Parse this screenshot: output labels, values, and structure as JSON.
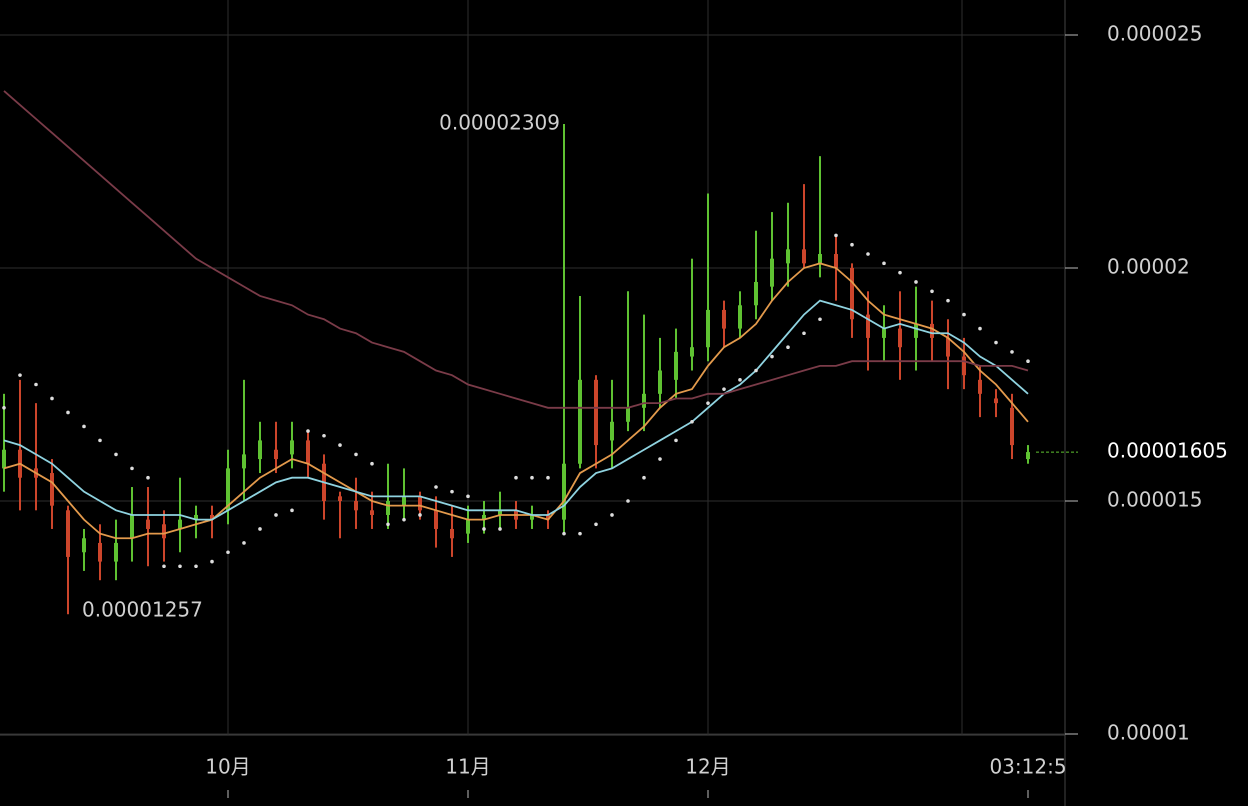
{
  "chart_data": {
    "type": "candlestick",
    "categories": [
      null,
      null,
      null,
      null,
      null,
      null,
      null,
      null,
      null,
      null,
      null,
      null,
      null,
      null,
      "10月",
      null,
      null,
      null,
      null,
      null,
      null,
      null,
      null,
      null,
      null,
      null,
      null,
      null,
      null,
      "11月",
      null,
      null,
      null,
      null,
      null,
      null,
      null,
      null,
      null,
      null,
      null,
      null,
      null,
      null,
      "12月",
      null,
      null,
      null,
      null,
      null,
      null,
      null,
      null,
      null,
      null,
      null,
      null,
      null,
      null,
      null,
      null,
      null,
      null,
      null,
      "03:12:5"
    ],
    "open": [
      1.57e-05,
      1.61e-05,
      1.57e-05,
      1.56e-05,
      1.48e-05,
      1.39e-05,
      1.41e-05,
      1.37e-05,
      1.42e-05,
      1.46e-05,
      1.45e-05,
      1.44e-05,
      1.46e-05,
      1.47e-05,
      1.48e-05,
      1.57e-05,
      1.59e-05,
      1.61e-05,
      1.6e-05,
      1.63e-05,
      1.58e-05,
      1.51e-05,
      1.5e-05,
      1.48e-05,
      1.47e-05,
      1.49e-05,
      1.51e-05,
      1.48e-05,
      1.44e-05,
      1.43e-05,
      1.46e-05,
      1.47e-05,
      1.48e-05,
      1.46e-05,
      1.47e-05,
      1.46e-05,
      1.58e-05,
      1.76e-05,
      1.63e-05,
      1.67e-05,
      1.7e-05,
      1.73e-05,
      1.76e-05,
      1.81e-05,
      1.83e-05,
      1.91e-05,
      1.87e-05,
      1.92e-05,
      1.96e-05,
      2.01e-05,
      2.04e-05,
      2.01e-05,
      2.03e-05,
      2e-05,
      1.9e-05,
      1.85e-05,
      1.87e-05,
      1.85e-05,
      1.88e-05,
      1.85e-05,
      1.81e-05,
      1.76e-05,
      1.72e-05,
      1.7e-05,
      1.59e-05
    ],
    "high": [
      1.73e-05,
      1.76e-05,
      1.71e-05,
      1.59e-05,
      1.49e-05,
      1.44e-05,
      1.45e-05,
      1.46e-05,
      1.53e-05,
      1.53e-05,
      1.48e-05,
      1.55e-05,
      1.49e-05,
      1.49e-05,
      1.61e-05,
      1.76e-05,
      1.67e-05,
      1.67e-05,
      1.67e-05,
      1.65e-05,
      1.6e-05,
      1.52e-05,
      1.55e-05,
      1.52e-05,
      1.58e-05,
      1.57e-05,
      1.52e-05,
      1.51e-05,
      1.49e-05,
      1.49e-05,
      1.5e-05,
      1.52e-05,
      1.5e-05,
      1.49e-05,
      1.48e-05,
      2.309e-05,
      1.94e-05,
      1.77e-05,
      1.76e-05,
      1.95e-05,
      1.9e-05,
      1.85e-05,
      1.87e-05,
      2.02e-05,
      2.16e-05,
      1.93e-05,
      1.95e-05,
      2.08e-05,
      2.12e-05,
      2.14e-05,
      2.18e-05,
      2.24e-05,
      2.07e-05,
      2.01e-05,
      1.95e-05,
      1.92e-05,
      1.95e-05,
      1.96e-05,
      1.93e-05,
      1.89e-05,
      1.85e-05,
      1.79e-05,
      1.74e-05,
      1.73e-05,
      1.62e-05
    ],
    "low": [
      1.52e-05,
      1.48e-05,
      1.48e-05,
      1.44e-05,
      1.257e-05,
      1.35e-05,
      1.33e-05,
      1.33e-05,
      1.37e-05,
      1.36e-05,
      1.37e-05,
      1.39e-05,
      1.42e-05,
      1.42e-05,
      1.45e-05,
      1.5e-05,
      1.56e-05,
      1.56e-05,
      1.57e-05,
      1.55e-05,
      1.46e-05,
      1.42e-05,
      1.44e-05,
      1.44e-05,
      1.44e-05,
      1.46e-05,
      1.46e-05,
      1.4e-05,
      1.38e-05,
      1.41e-05,
      1.43e-05,
      1.44e-05,
      1.44e-05,
      1.44e-05,
      1.44e-05,
      1.43e-05,
      1.57e-05,
      1.57e-05,
      1.57e-05,
      1.65e-05,
      1.65e-05,
      1.7e-05,
      1.72e-05,
      1.78e-05,
      1.8e-05,
      1.83e-05,
      1.85e-05,
      1.89e-05,
      1.93e-05,
      1.96e-05,
      2e-05,
      1.98e-05,
      1.93e-05,
      1.85e-05,
      1.78e-05,
      1.8e-05,
      1.76e-05,
      1.78e-05,
      1.8e-05,
      1.74e-05,
      1.74e-05,
      1.68e-05,
      1.68e-05,
      1.59e-05,
      1.58e-05
    ],
    "close": [
      1.61e-05,
      1.55e-05,
      1.55e-05,
      1.49e-05,
      1.38e-05,
      1.42e-05,
      1.37e-05,
      1.41e-05,
      1.47e-05,
      1.44e-05,
      1.42e-05,
      1.46e-05,
      1.47e-05,
      1.46e-05,
      1.57e-05,
      1.6e-05,
      1.63e-05,
      1.59e-05,
      1.63e-05,
      1.58e-05,
      1.5e-05,
      1.5e-05,
      1.48e-05,
      1.47e-05,
      1.5e-05,
      1.51e-05,
      1.48e-05,
      1.44e-05,
      1.42e-05,
      1.46e-05,
      1.47e-05,
      1.48e-05,
      1.46e-05,
      1.47e-05,
      1.46e-05,
      1.58e-05,
      1.76e-05,
      1.62e-05,
      1.67e-05,
      1.7e-05,
      1.73e-05,
      1.78e-05,
      1.82e-05,
      1.83e-05,
      1.91e-05,
      1.87e-05,
      1.92e-05,
      1.97e-05,
      2.02e-05,
      2.04e-05,
      2.01e-05,
      2.03e-05,
      2e-05,
      1.89e-05,
      1.85e-05,
      1.87e-05,
      1.83e-05,
      1.88e-05,
      1.85e-05,
      1.81e-05,
      1.77e-05,
      1.73e-05,
      1.71e-05,
      1.62e-05,
      1.605e-05
    ],
    "up_color": "#5fc232",
    "down_color": "#cc452b",
    "series": [
      {
        "color": "#e39a4c",
        "style": "line",
        "values": [
          1.57e-05,
          1.58e-05,
          1.56e-05,
          1.54e-05,
          1.5e-05,
          1.46e-05,
          1.43e-05,
          1.42e-05,
          1.42e-05,
          1.43e-05,
          1.43e-05,
          1.44e-05,
          1.45e-05,
          1.46e-05,
          1.49e-05,
          1.52e-05,
          1.55e-05,
          1.57e-05,
          1.59e-05,
          1.58e-05,
          1.56e-05,
          1.54e-05,
          1.52e-05,
          1.5e-05,
          1.49e-05,
          1.49e-05,
          1.49e-05,
          1.48e-05,
          1.47e-05,
          1.46e-05,
          1.46e-05,
          1.47e-05,
          1.47e-05,
          1.47e-05,
          1.46e-05,
          1.5e-05,
          1.56e-05,
          1.58e-05,
          1.6e-05,
          1.63e-05,
          1.66e-05,
          1.7e-05,
          1.73e-05,
          1.74e-05,
          1.79e-05,
          1.83e-05,
          1.85e-05,
          1.88e-05,
          1.93e-05,
          1.97e-05,
          2e-05,
          2.01e-05,
          2e-05,
          1.97e-05,
          1.93e-05,
          1.9e-05,
          1.89e-05,
          1.88e-05,
          1.87e-05,
          1.85e-05,
          1.82e-05,
          1.78e-05,
          1.75e-05,
          1.71e-05,
          1.67e-05
        ]
      },
      {
        "color": "#8fd3e0",
        "style": "line",
        "values": [
          1.63e-05,
          1.62e-05,
          1.6e-05,
          1.58e-05,
          1.55e-05,
          1.52e-05,
          1.5e-05,
          1.48e-05,
          1.47e-05,
          1.47e-05,
          1.47e-05,
          1.47e-05,
          1.46e-05,
          1.46e-05,
          1.48e-05,
          1.5e-05,
          1.52e-05,
          1.54e-05,
          1.55e-05,
          1.55e-05,
          1.54e-05,
          1.53e-05,
          1.52e-05,
          1.51e-05,
          1.51e-05,
          1.51e-05,
          1.51e-05,
          1.5e-05,
          1.49e-05,
          1.48e-05,
          1.48e-05,
          1.48e-05,
          1.48e-05,
          1.47e-05,
          1.47e-05,
          1.49e-05,
          1.53e-05,
          1.56e-05,
          1.57e-05,
          1.59e-05,
          1.61e-05,
          1.63e-05,
          1.65e-05,
          1.67e-05,
          1.7e-05,
          1.73e-05,
          1.75e-05,
          1.78e-05,
          1.82e-05,
          1.86e-05,
          1.9e-05,
          1.93e-05,
          1.92e-05,
          1.91e-05,
          1.89e-05,
          1.87e-05,
          1.88e-05,
          1.87e-05,
          1.86e-05,
          1.86e-05,
          1.84e-05,
          1.81e-05,
          1.79e-05,
          1.76e-05,
          1.73e-05
        ]
      },
      {
        "color": "#7a3b48",
        "style": "line",
        "values": [
          2.38e-05,
          2.35e-05,
          2.32e-05,
          2.29e-05,
          2.26e-05,
          2.23e-05,
          2.2e-05,
          2.17e-05,
          2.14e-05,
          2.11e-05,
          2.08e-05,
          2.05e-05,
          2.02e-05,
          2e-05,
          1.98e-05,
          1.96e-05,
          1.94e-05,
          1.93e-05,
          1.92e-05,
          1.9e-05,
          1.89e-05,
          1.87e-05,
          1.86e-05,
          1.84e-05,
          1.83e-05,
          1.82e-05,
          1.8e-05,
          1.78e-05,
          1.77e-05,
          1.75e-05,
          1.74e-05,
          1.73e-05,
          1.72e-05,
          1.71e-05,
          1.7e-05,
          1.7e-05,
          1.7e-05,
          1.7e-05,
          1.7e-05,
          1.7e-05,
          1.71e-05,
          1.71e-05,
          1.72e-05,
          1.72e-05,
          1.73e-05,
          1.73e-05,
          1.74e-05,
          1.75e-05,
          1.76e-05,
          1.77e-05,
          1.78e-05,
          1.79e-05,
          1.79e-05,
          1.8e-05,
          1.8e-05,
          1.8e-05,
          1.8e-05,
          1.8e-05,
          1.8e-05,
          1.8e-05,
          1.8e-05,
          1.79e-05,
          1.79e-05,
          1.79e-05,
          1.78e-05
        ]
      },
      {
        "color": "#dddddd",
        "style": "dots",
        "values": [
          1.7e-05,
          1.77e-05,
          1.75e-05,
          1.72e-05,
          1.69e-05,
          1.66e-05,
          1.63e-05,
          1.6e-05,
          1.57e-05,
          1.55e-05,
          1.36e-05,
          1.36e-05,
          1.36e-05,
          1.37e-05,
          1.39e-05,
          1.41e-05,
          1.44e-05,
          1.47e-05,
          1.48e-05,
          1.65e-05,
          1.64e-05,
          1.62e-05,
          1.6e-05,
          1.58e-05,
          1.45e-05,
          1.46e-05,
          1.47e-05,
          1.53e-05,
          1.52e-05,
          1.51e-05,
          1.44e-05,
          1.44e-05,
          1.55e-05,
          1.55e-05,
          1.55e-05,
          1.43e-05,
          1.43e-05,
          1.45e-05,
          1.47e-05,
          1.5e-05,
          1.55e-05,
          1.59e-05,
          1.63e-05,
          1.67e-05,
          1.71e-05,
          1.74e-05,
          1.76e-05,
          1.78e-05,
          1.81e-05,
          1.83e-05,
          1.86e-05,
          1.89e-05,
          2.07e-05,
          2.05e-05,
          2.03e-05,
          2.01e-05,
          1.99e-05,
          1.97e-05,
          1.95e-05,
          1.93e-05,
          1.9e-05,
          1.87e-05,
          1.84e-05,
          1.82e-05,
          1.8e-05
        ]
      }
    ],
    "annotations": {
      "high": 2.309e-05,
      "low": 1.257e-05,
      "last": 1.605e-05
    },
    "ylim": [
      1e-05,
      2.5e-05
    ],
    "yticks": [
      1e-05,
      1.5e-05,
      2e-05,
      2.5e-05
    ],
    "grid": true
  }
}
